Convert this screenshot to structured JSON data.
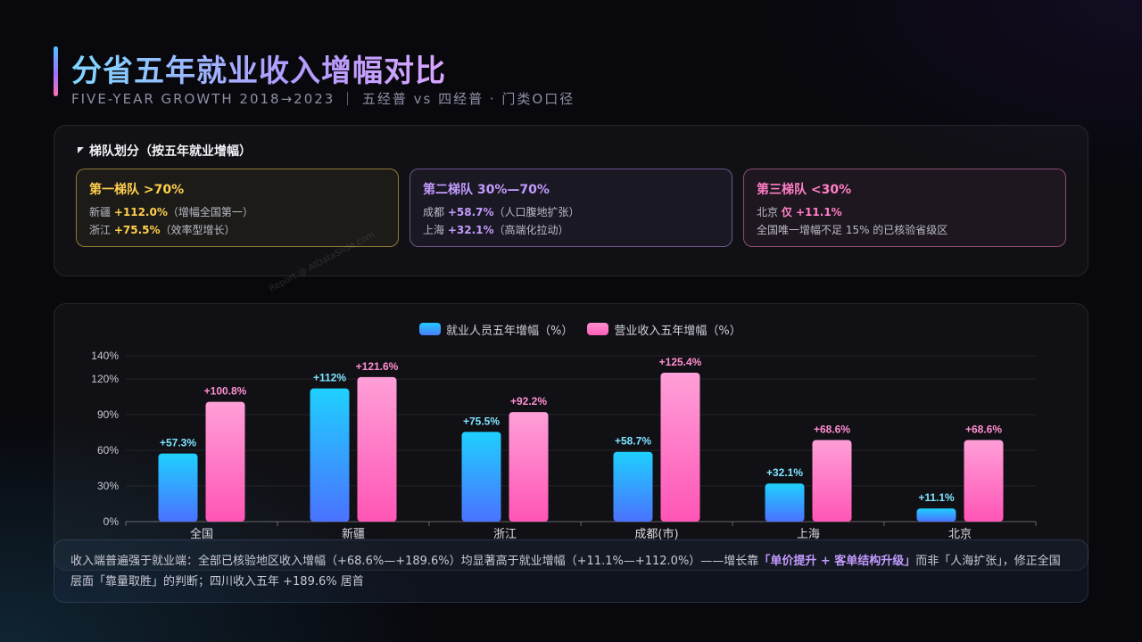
{
  "header": {
    "title": "分省五年就业收入增幅对比",
    "subtitle": "FIVE-YEAR GROWTH 2018→2023 ｜ 五经普 vs 四经普 · 门类O口径"
  },
  "tiers": {
    "heading": "梯队划分（按五年就业增幅）",
    "cards": [
      {
        "title": "第一梯队 >70%",
        "lines": [
          {
            "pre": "新疆 ",
            "hl": "+112.0%",
            "post": "（增幅全国第一）"
          },
          {
            "pre": "浙江 ",
            "hl": "+75.5%",
            "post": "（效率型增长）"
          }
        ]
      },
      {
        "title": "第二梯队 30%—70%",
        "lines": [
          {
            "pre": "成都 ",
            "hl": "+58.7%",
            "post": "（人口腹地扩张）"
          },
          {
            "pre": "上海 ",
            "hl": "+32.1%",
            "post": "（高端化拉动）"
          }
        ]
      },
      {
        "title": "第三梯队 <30%",
        "lines": [
          {
            "pre": "北京 ",
            "hl": "仅 +11.1%",
            "post": ""
          },
          {
            "pre": "全国唯一增幅不足 15% 的已核验省级区",
            "hl": "",
            "post": ""
          }
        ]
      }
    ]
  },
  "watermark": "Report @ AIDataSlide.com",
  "summary": {
    "pre": "收入端普遍强于就业端：全部已核验地区收入增幅（+68.6%—+189.6%）均显著高于就业增幅（+11.1%—+112.0%）——增长靠",
    "em": "「单价提升 + 客单结构升级」",
    "post": "而非「人海扩张」，修正全国层面「靠量取胜」的判断；四川收入五年 +189.6% 居首"
  },
  "colors": {
    "employment": "#22c8ff",
    "revenue": "#ff6fbf"
  },
  "chart_data": {
    "type": "bar",
    "categories": [
      "全国",
      "新疆",
      "浙江",
      "成都(市)",
      "上海",
      "北京"
    ],
    "series": [
      {
        "name": "就业人员五年增幅（%）",
        "values": [
          57.3,
          112,
          75.5,
          58.7,
          32.1,
          11.1
        ],
        "labels": [
          "+57.3%",
          "+112%",
          "+75.5%",
          "+58.7%",
          "+32.1%",
          "+11.1%"
        ]
      },
      {
        "name": "营业收入五年增幅（%）",
        "values": [
          100.8,
          121.6,
          92.2,
          125.4,
          68.6,
          68.6
        ],
        "labels": [
          "+100.8%",
          "+121.6%",
          "+92.2%",
          "+125.4%",
          "+68.6%",
          "+68.6%"
        ]
      }
    ],
    "yticks": [
      0,
      30,
      60,
      90,
      120,
      140
    ],
    "ytick_labels": [
      "0%",
      "30%",
      "60%",
      "90%",
      "120%",
      "140%"
    ],
    "ylim": [
      0,
      140
    ],
    "grid": true,
    "legend": "top-center"
  }
}
